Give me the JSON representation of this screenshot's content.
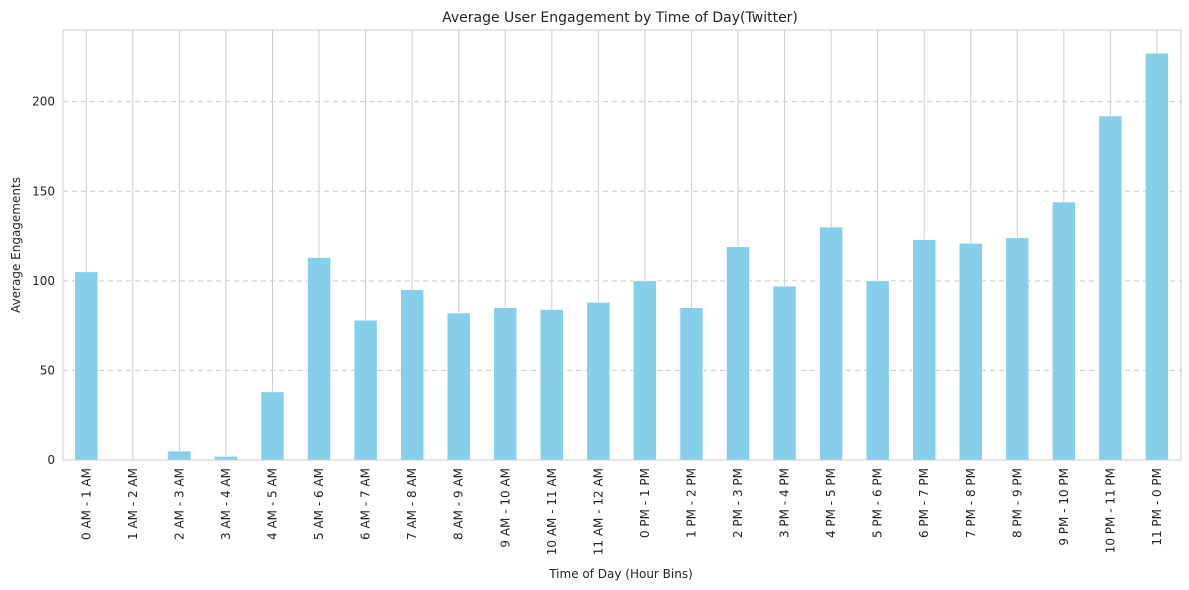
{
  "chart_data": {
    "type": "bar",
    "title": "Average User Engagement by Time of Day(Twitter)",
    "xlabel": "Time of Day (Hour Bins)",
    "ylabel": "Average Engagements",
    "categories": [
      "0 AM - 1 AM",
      "1 AM - 2 AM",
      "2 AM - 3 AM",
      "3 AM - 4 AM",
      "4 AM - 5 AM",
      "5 AM - 6 AM",
      "6 AM - 7 AM",
      "7 AM - 8 AM",
      "8 AM - 9 AM",
      "9 AM - 10 AM",
      "10 AM - 11 AM",
      "11 AM - 12 AM",
      "0 PM - 1 PM",
      "1 PM - 2 PM",
      "2 PM - 3 PM",
      "3 PM - 4 PM",
      "4 PM - 5 PM",
      "5 PM - 6 PM",
      "6 PM - 7 PM",
      "7 PM - 8 PM",
      "8 PM - 9 PM",
      "9 PM - 10 PM",
      "10 PM - 11 PM",
      "11 PM - 0 PM"
    ],
    "values": [
      105,
      0,
      5,
      2,
      38,
      113,
      78,
      95,
      82,
      85,
      84,
      88,
      100,
      85,
      119,
      97,
      130,
      100,
      123,
      121,
      124,
      144,
      192,
      227
    ],
    "ylim": [
      0,
      240
    ],
    "yticks": [
      0,
      50,
      100,
      150,
      200
    ],
    "grid": true,
    "bar_color": "#87ceeb"
  }
}
